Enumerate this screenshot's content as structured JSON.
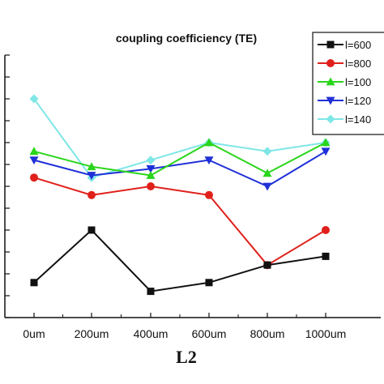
{
  "chart_data": {
    "type": "line",
    "title": "coupling coefficiency (TE)",
    "xlabel": "L2",
    "ylabel": "",
    "categories": [
      "0um",
      "200um",
      "400um",
      "600um",
      "800um",
      "1000um"
    ],
    "ylim": [
      0,
      6
    ],
    "grid": false,
    "legend_position": "top-right",
    "series": [
      {
        "name": "l=600",
        "color": "#111111",
        "marker": "square",
        "values": [
          0.8,
          2.0,
          0.6,
          0.8,
          1.2,
          1.4
        ]
      },
      {
        "name": "l=800",
        "color": "#e0201b",
        "marker": "circle",
        "values": [
          3.2,
          2.8,
          3.0,
          2.8,
          1.2,
          2.0
        ]
      },
      {
        "name": "l=100",
        "color": "#2ad51b",
        "marker": "triangle-up",
        "values": [
          3.8,
          3.45,
          3.25,
          4.0,
          3.3,
          4.0
        ]
      },
      {
        "name": "l=120",
        "color": "#2030d8",
        "marker": "triangle-down",
        "values": [
          3.6,
          3.25,
          3.4,
          3.6,
          3.0,
          3.8
        ]
      },
      {
        "name": "l=140",
        "color": "#7fe6e6",
        "marker": "diamond",
        "values": [
          5.0,
          3.2,
          3.6,
          4.0,
          3.8,
          4.0
        ]
      }
    ]
  }
}
